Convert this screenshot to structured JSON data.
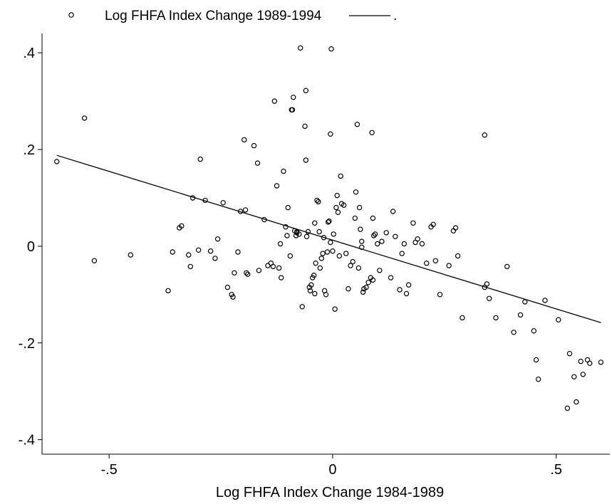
{
  "chart_data": {
    "type": "scatter",
    "xlabel": "Log FHFA Index Change 1984-1989",
    "ylabel": "",
    "xlim": [
      -0.65,
      0.62
    ],
    "ylim": [
      -0.43,
      0.44
    ],
    "xticks": [
      -0.5,
      0,
      0.5
    ],
    "xtick_labels": [
      "-.5",
      "0",
      ".5"
    ],
    "yticks": [
      -0.4,
      -0.2,
      0,
      0.2,
      0.4
    ],
    "ytick_labels": [
      "-.4",
      "-.2",
      "0",
      ".2",
      ".4"
    ],
    "grid": false,
    "legend_placement": "top-left",
    "legend": {
      "series_label": "Log FHFA Index Change 1989-1994",
      "fit_label": "."
    },
    "series": [
      {
        "kind": "points",
        "x": [
          -0.617,
          -0.555,
          -0.533,
          -0.452,
          -0.368,
          -0.358,
          -0.343,
          -0.338,
          -0.322,
          -0.318,
          -0.313,
          -0.3,
          -0.296,
          -0.285,
          -0.273,
          -0.263,
          -0.257,
          -0.245,
          -0.235,
          -0.226,
          -0.223,
          -0.22,
          -0.212,
          -0.206,
          -0.198,
          -0.195,
          -0.193,
          -0.19,
          -0.176,
          -0.168,
          -0.165,
          -0.153,
          -0.145,
          -0.138,
          -0.133,
          -0.125,
          -0.117,
          -0.115,
          -0.105,
          -0.102,
          -0.1,
          -0.095,
          -0.092,
          -0.09,
          -0.088,
          -0.085,
          -0.082,
          -0.08,
          -0.075,
          -0.072,
          -0.068,
          -0.062,
          -0.06,
          -0.058,
          -0.055,
          -0.052,
          -0.05,
          -0.048,
          -0.045,
          -0.042,
          -0.04,
          -0.038,
          -0.035,
          -0.032,
          -0.03,
          -0.028,
          -0.025,
          -0.022,
          -0.02,
          -0.018,
          -0.015,
          -0.012,
          -0.01,
          -0.008,
          -0.005,
          -0.003,
          0.0,
          0.002,
          0.005,
          0.008,
          0.01,
          0.012,
          0.015,
          0.018,
          0.02,
          0.025,
          0.03,
          0.035,
          0.04,
          0.045,
          0.05,
          0.052,
          0.055,
          0.058,
          0.06,
          0.062,
          0.065,
          0.068,
          0.07,
          0.075,
          0.08,
          0.085,
          0.088,
          0.09,
          0.092,
          0.095,
          0.1,
          0.105,
          0.11,
          0.12,
          0.13,
          0.135,
          0.14,
          0.15,
          0.155,
          0.16,
          0.165,
          0.17,
          0.18,
          0.185,
          0.19,
          0.2,
          0.21,
          0.22,
          0.225,
          0.23,
          0.24,
          0.26,
          0.27,
          0.275,
          0.28,
          0.29,
          0.34,
          0.345,
          0.35,
          0.365,
          0.39,
          0.405,
          0.42,
          0.43,
          0.45,
          0.455,
          0.46,
          0.475,
          0.505,
          0.525,
          0.53,
          0.54,
          0.545,
          0.555,
          0.56,
          0.57,
          0.575,
          0.6,
          -0.11,
          -0.13,
          -0.06,
          -0.04,
          -0.005,
          0.065,
          0.09,
          0.34,
          -0.08,
          -0.12
        ],
        "y": [
          0.175,
          0.265,
          -0.03,
          -0.018,
          -0.092,
          -0.012,
          0.038,
          0.042,
          -0.018,
          -0.042,
          0.1,
          -0.008,
          0.18,
          0.095,
          -0.01,
          -0.025,
          0.015,
          0.09,
          -0.085,
          -0.1,
          -0.105,
          -0.055,
          -0.012,
          0.072,
          0.22,
          0.075,
          -0.055,
          -0.058,
          0.208,
          0.172,
          -0.05,
          0.055,
          -0.04,
          -0.035,
          -0.042,
          0.125,
          0.005,
          -0.065,
          0.04,
          0.022,
          0.08,
          -0.02,
          0.282,
          0.282,
          0.308,
          0.032,
          0.022,
          0.028,
          0.025,
          0.41,
          -0.125,
          0.248,
          0.322,
          0.02,
          0.03,
          -0.085,
          -0.092,
          -0.08,
          -0.065,
          -0.06,
          -0.098,
          -0.035,
          0.095,
          0.092,
          0.03,
          -0.045,
          -0.025,
          -0.015,
          0.018,
          -0.092,
          -0.1,
          -0.012,
          0.05,
          0.052,
          0.232,
          0.408,
          -0.01,
          0.025,
          -0.13,
          0.08,
          0.105,
          0.07,
          -0.02,
          0.145,
          0.088,
          0.085,
          -0.015,
          -0.088,
          -0.04,
          -0.032,
          0.058,
          0.112,
          0.252,
          -0.045,
          0.08,
          0.035,
          0.01,
          -0.095,
          -0.088,
          -0.085,
          -0.075,
          -0.065,
          0.235,
          -0.07,
          0.022,
          0.025,
          0.005,
          -0.05,
          0.01,
          0.028,
          -0.065,
          0.072,
          0.02,
          -0.09,
          -0.015,
          0.005,
          -0.098,
          -0.08,
          0.048,
          0.008,
          0.015,
          0.005,
          -0.035,
          0.04,
          0.045,
          -0.03,
          -0.1,
          -0.04,
          0.032,
          0.038,
          -0.02,
          -0.148,
          0.23,
          -0.078,
          -0.108,
          -0.148,
          -0.042,
          -0.178,
          -0.142,
          -0.115,
          -0.175,
          -0.235,
          -0.275,
          -0.112,
          -0.152,
          -0.335,
          -0.222,
          -0.27,
          -0.322,
          -0.238,
          -0.265,
          -0.235,
          -0.242,
          -0.24,
          0.155,
          0.3,
          0.178,
          0.048,
          0.008,
          -0.002,
          0.058,
          -0.085,
          0.03,
          -0.045
        ]
      },
      {
        "kind": "fit_line",
        "x": [
          -0.617,
          0.6
        ],
        "y": [
          0.188,
          -0.158
        ]
      }
    ]
  }
}
